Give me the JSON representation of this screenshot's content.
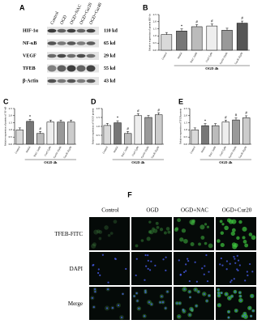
{
  "blot": {
    "panel": "A",
    "lanes": [
      "Control",
      "OGD",
      "OGD+NAC",
      "OGD+Cur20",
      "OGD+Cur40"
    ],
    "rows": [
      {
        "name": "HIF-1α",
        "size": "110 kd"
      },
      {
        "name": "NF-κB",
        "size": "65 kd"
      },
      {
        "name": "VEGF",
        "size": "29 kd"
      },
      {
        "name": "TFEB",
        "size": "55 kd"
      },
      {
        "name": "β-Actin",
        "size": "43 kd"
      }
    ]
  },
  "chart_data": [
    {
      "type": "bar",
      "panel": "B",
      "ylabel": "Relative expression of protein HIF-1α",
      "xlabel": "OGD 4h",
      "categories": [
        "Control",
        "Model",
        "NAC 1mM",
        "Cur5 5μM",
        "Cur10 10μM",
        "Cur20 20μM"
      ],
      "values": [
        1.1,
        1.35,
        1.65,
        1.7,
        1.4,
        1.9
      ],
      "markers": [
        null,
        "*",
        "#",
        "#",
        null,
        "#"
      ],
      "colors": [
        "#d9d9d9",
        "#777777",
        "#bbbbbb",
        "#eeeeee",
        "#999999",
        "#555555"
      ],
      "ylim": [
        0,
        2.5
      ],
      "yticks": [
        {
          "value": 0,
          "label": "0.0"
        },
        {
          "value": 0.5,
          "label": "0.5"
        },
        {
          "value": 1,
          "label": "1.0"
        },
        {
          "value": 1.5,
          "label": "1.5"
        },
        {
          "value": 2,
          "label": "2.0"
        },
        {
          "value": 2.5,
          "label": "2.5"
        }
      ]
    },
    {
      "type": "bar",
      "panel": "C",
      "ylabel": "Relative expression of protein of NF-κB",
      "xlabel": "OGD 4h",
      "categories": [
        "Control",
        "Model",
        "NAC 1mM",
        "Cur5 5μM",
        "Cur10 10μM",
        "Cur20 20μM"
      ],
      "values": [
        1.0,
        1.6,
        0.75,
        1.55,
        1.55,
        1.55
      ],
      "markers": [
        null,
        "*",
        "#",
        null,
        null,
        null
      ],
      "colors": [
        "#d9d9d9",
        "#777777",
        "#bbbbbb",
        "#eeeeee",
        "#999999",
        "#cccccc"
      ],
      "ylim": [
        0,
        2.5
      ],
      "yticks": [
        {
          "value": 0,
          "label": "0.0"
        },
        {
          "value": 0.5,
          "label": "0.5"
        },
        {
          "value": 1,
          "label": "1.0"
        },
        {
          "value": 1.5,
          "label": "1.5"
        },
        {
          "value": 2,
          "label": "2.0"
        },
        {
          "value": 2.5,
          "label": "2.5"
        }
      ]
    },
    {
      "type": "bar",
      "panel": "D",
      "ylabel": "Relative expression of VEGF protein",
      "xlabel": "OGD 4h",
      "categories": [
        "Control",
        "Model",
        "NAC 1mM",
        "Cur5 5μM",
        "Cur10 10μM",
        "Cur20 20μM"
      ],
      "values": [
        1.05,
        1.2,
        0.6,
        1.6,
        1.5,
        1.65
      ],
      "markers": [
        null,
        "*",
        "#",
        "#",
        null,
        "#"
      ],
      "colors": [
        "#d9d9d9",
        "#777777",
        "#bbbbbb",
        "#eeeeee",
        "#999999",
        "#cccccc"
      ],
      "ylim": [
        0,
        2
      ],
      "yticks": [
        {
          "value": 0,
          "label": "0.0"
        },
        {
          "value": 0.5,
          "label": "0.5"
        },
        {
          "value": 1,
          "label": "1.0"
        },
        {
          "value": 1.5,
          "label": "1.5"
        },
        {
          "value": 2,
          "label": "2.0"
        }
      ]
    },
    {
      "type": "bar",
      "panel": "E",
      "ylabel": "Relative expression of TFEB protein",
      "xlabel": "OGD 4h",
      "categories": [
        "Control",
        "Model",
        "NAC 1mM",
        "Cur5 5μM",
        "Cur10 10μM",
        "Cur20 20μM"
      ],
      "values": [
        1.0,
        1.3,
        1.3,
        1.55,
        1.7,
        1.85
      ],
      "markers": [
        null,
        "*",
        null,
        "#",
        "#",
        "#"
      ],
      "colors": [
        "#d9d9d9",
        "#777777",
        "#bbbbbb",
        "#eeeeee",
        "#999999",
        "#cccccc"
      ],
      "ylim": [
        0,
        2.5
      ],
      "yticks": [
        {
          "value": 0,
          "label": "0.0"
        },
        {
          "value": 0.5,
          "label": "0.5"
        },
        {
          "value": 1,
          "label": "1.0"
        },
        {
          "value": 1.5,
          "label": "1.5"
        },
        {
          "value": 2,
          "label": "2.0"
        },
        {
          "value": 2.5,
          "label": "2.5"
        }
      ]
    }
  ],
  "micrograph": {
    "panel": "F",
    "columns": [
      "Control",
      "OGD",
      "OGD+NAC",
      "OGD+Cur20"
    ],
    "rows": [
      "TFEB-FITC",
      "DAPI",
      "Merge"
    ]
  }
}
